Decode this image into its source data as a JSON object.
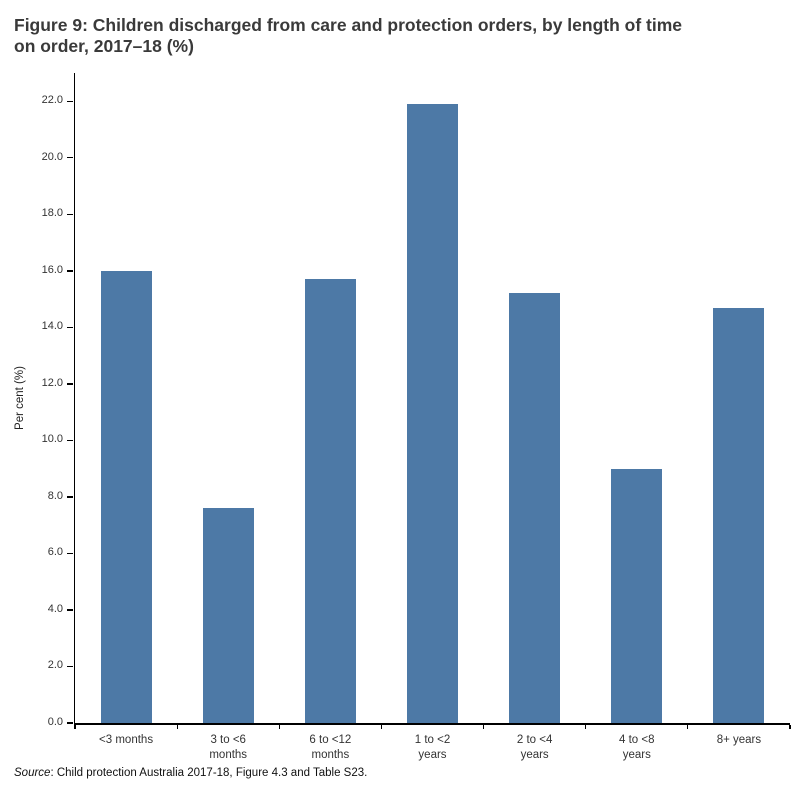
{
  "title": {
    "text": "Figure 9: Children discharged from care and protection orders, by length of time on order, 2017–18 (%)",
    "lines": [
      "Figure 9: Children discharged from care and protection orders, by length of time",
      "on order, 2017–18 (%)"
    ]
  },
  "chart_data": {
    "type": "bar",
    "categories": [
      "<3 months",
      "3 to <6 months",
      "6 to <12 months",
      "1 to <2 years",
      "2 to <4 years",
      "4 to <8 years",
      "8+ years"
    ],
    "category_display_lines": [
      "<3 months",
      "3 to <6\nmonths",
      "6 to <12\nmonths",
      "1 to <2\nyears",
      "2 to <4\nyears",
      "4 to <8\nyears",
      "8+ years"
    ],
    "values": [
      16.0,
      7.6,
      15.7,
      21.9,
      15.2,
      9.0,
      14.7
    ],
    "xlabel": "",
    "ylabel": "Per cent (%)",
    "ylim": [
      0,
      23
    ],
    "ytick_values": [
      0,
      2,
      4,
      6,
      8,
      10,
      12,
      14,
      16,
      18,
      20,
      22
    ],
    "ytick_labels": [
      "0.0",
      "2.0",
      "4.0",
      "6.0",
      "8.0",
      "10.0",
      "12.0",
      "14.0",
      "16.0",
      "18.0",
      "20.0",
      "22.0"
    ],
    "grid": false,
    "legend_position": "none",
    "bar_color": "#4d79a6",
    "axis_color": "#000000"
  },
  "source": {
    "prefix": "Source",
    "text": ": Child protection Australia 2017-18, Figure 4.3 and Table S23."
  }
}
